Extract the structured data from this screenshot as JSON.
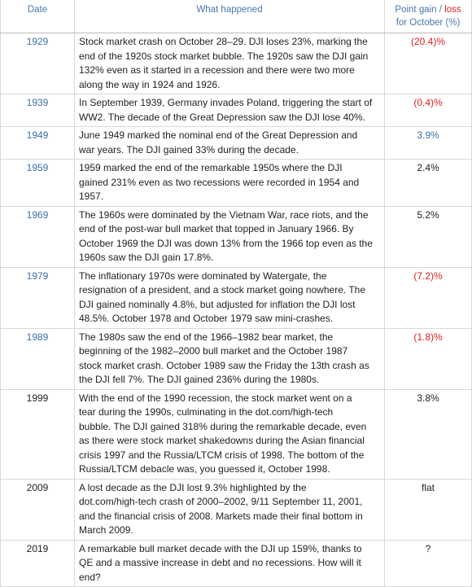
{
  "header": {
    "date": "Date",
    "what": "What happened",
    "gain_parts": [
      "Point gain / ",
      "loss",
      "for October (%)"
    ]
  },
  "rows": [
    {
      "date": "1929",
      "lines": [
        "Stock market crash on October 28–29. DJI loses 23%, marking the",
        "end of the 1920s stock market bubble. The 1920s saw the DJI gain",
        "132% even as it started in a recession and there were two more",
        "along the way in 1924 and 1926."
      ],
      "gain": "(20.4)%",
      "date_color": "#3d6fa8",
      "gain_color": "#e02020"
    },
    {
      "date": "1939",
      "lines": [
        "In September 1939, Germany invades Poland, triggering the start of",
        "WW2. The decade of the Great Depression saw the DJI lose 40%."
      ],
      "gain": "(0.4)%",
      "date_color": "#3d6fa8",
      "gain_color": "#e02020"
    },
    {
      "date": "1949",
      "lines": [
        "June 1949 marked the nominal end of the Great Depression and",
        "war years. The DJI gained 33% during the decade."
      ],
      "gain": "3.9%",
      "date_color": "#3d6fa8",
      "gain_color": "#3d6fa8"
    },
    {
      "date": "1959",
      "lines": [
        "1959 marked the end of the remarkable 1950s where the DJI",
        "gained 231% even as two recessions were recorded in 1954 and",
        "1957."
      ],
      "gain": "2.4%",
      "date_color": "#3d6fa8",
      "gain_color": "#222222"
    },
    {
      "date": "1969",
      "lines": [
        "The 1960s were dominated by the Vietnam War, race riots, and the",
        "end of the post-war bull market that topped in January 1966. By",
        "October 1969 the DJI was down 13% from the 1966 top even as the",
        "1960s saw the DJI gain 17.8%."
      ],
      "gain": "5.2%",
      "date_color": "#3d6fa8",
      "gain_color": "#222222"
    },
    {
      "date": "1979",
      "lines": [
        "The inflationary 1970s were dominated by Watergate, the",
        "resignation of a president, and a stock market going nowhere. The",
        "DJI gained nominally 4.8%, but adjusted for inflation the DJI lost",
        "48.5%. October 1978 and October 1979 saw mini-crashes."
      ],
      "gain": "(7.2)%",
      "date_color": "#3d6fa8",
      "gain_color": "#e02020"
    },
    {
      "date": "1989",
      "lines": [
        "The 1980s saw the end of the 1966–1982 bear market, the",
        "beginning of the 1982–2000 bull market and the October 1987",
        "stock market crash. October 1989 saw the Friday the 13th crash as",
        "the DJI fell 7%. The DJI gained 236% during the 1980s."
      ],
      "gain": "(1.8)%",
      "date_color": "#3d6fa8",
      "gain_color": "#e02020"
    },
    {
      "date": "1999",
      "lines": [
        "With the end of the 1990 recession, the stock market went on a",
        "tear during the 1990s, culminating in the dot.com/high-tech",
        "bubble. The DJI gained 318% during the remarkable decade, even",
        "as there were stock market shakedowns during the Asian financial",
        "crisis 1997 and the Russia/LTCM crisis of 1998. The bottom of the",
        "Russia/LTCM debacle was, you guessed it, October 1998."
      ],
      "gain": "3.8%",
      "date_color": "#222222",
      "gain_color": "#222222"
    },
    {
      "date": "2009",
      "lines": [
        "A lost decade as the DJI lost 9.3% highlighted by the",
        "dot.com/high-tech crash of 2000–2002, 9/11 September 11, 2001,",
        "and the financial crisis of 2008. Markets made their final bottom in",
        "March 2009."
      ],
      "gain": "flat",
      "date_color": "#222222",
      "gain_color": "#222222"
    },
    {
      "date": "2019",
      "lines": [
        "A remarkable bull market decade with the DJI up 159%, thanks to",
        "QE and a massive increase in debt and no recessions. How will it",
        "end?"
      ],
      "gain": "?",
      "date_color": "#222222",
      "gain_color": "#222222"
    }
  ]
}
